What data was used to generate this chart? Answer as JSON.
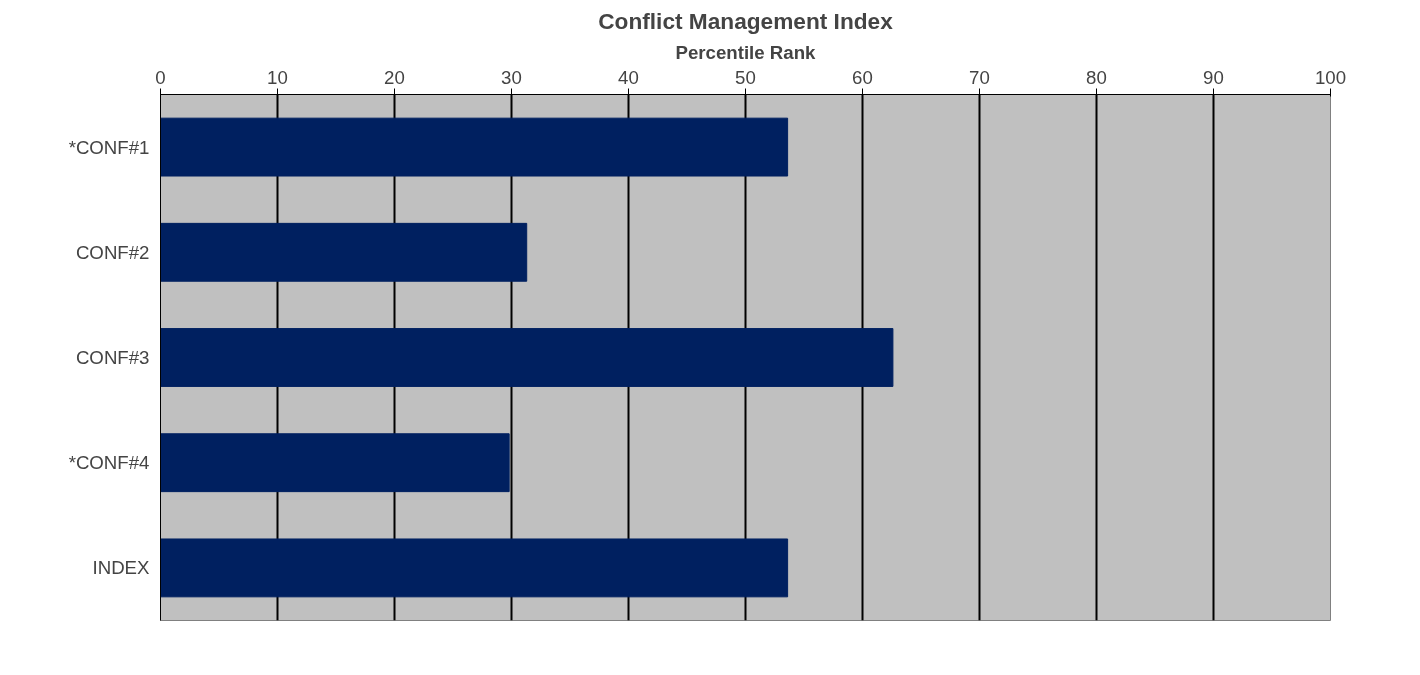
{
  "chart_data": {
    "type": "bar",
    "orientation": "horizontal",
    "title": "Conflict Management Index",
    "xlabel": "Percentile Rank",
    "categories": [
      "*CONF#1",
      "CONF#2",
      "CONF#3",
      "*CONF#4",
      "INDEX"
    ],
    "values": [
      53.6,
      31.3,
      62.6,
      29.8,
      53.6
    ],
    "color": "#002060",
    "xlim": [
      0,
      100
    ],
    "xticks": [
      0,
      10,
      20,
      30,
      40,
      50,
      60,
      70,
      80,
      90,
      100
    ],
    "grid": "x"
  }
}
